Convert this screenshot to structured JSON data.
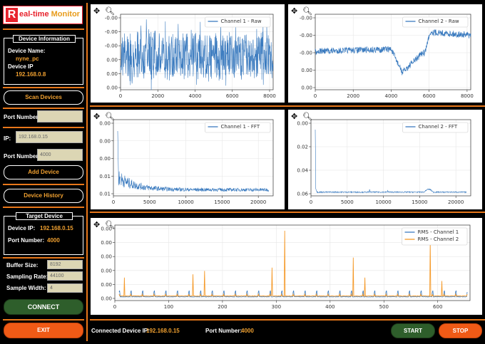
{
  "app": {
    "logo_letter": "R",
    "logo_text_a": "eal-time ",
    "logo_text_b": "Monitor"
  },
  "device_info": {
    "title": "Device Information",
    "name_label": "Device Name:",
    "name_value": "nyne_pc",
    "ip_label": "Device IP",
    "ip_value": "192.168.0.8"
  },
  "scan_button": "Scan Devices",
  "port_label": "Port Number",
  "port_value": "",
  "ip_label": "IP:",
  "ip_input": "192.168.0.15",
  "port2_label": "Port Number",
  "port2_input": "4000",
  "add_device_button": "Add Device",
  "device_history_button": "Device History",
  "target": {
    "title": "Target Device",
    "ip_label": "Device IP:",
    "ip_value": "192.168.0.15",
    "port_label": "Port Number:",
    "port_value": "4000"
  },
  "settings": {
    "buffer_label": "Buffer Size:",
    "buffer_value": "8192",
    "rate_label": "Sampling Rate:",
    "rate_value": "44100",
    "width_label": "Sample Width:",
    "width_value": "4"
  },
  "connect_button": "CONNECT",
  "exit_button": "EXIT",
  "status": {
    "connected_label": "Connected Device IP:",
    "connected_value": "192.168.0.15",
    "port_label": "Port Number:",
    "port_value": "4000"
  },
  "start_button": "START",
  "stop_button": "STOP",
  "colors": {
    "accent": "#e8771a",
    "blue": "#3b7bbf",
    "orange": "#f59a2a",
    "green": "#2e5e2b",
    "red": "#f05a16"
  },
  "icons": {
    "pan": "move-icon",
    "zoom": "magnifier-icon"
  },
  "plots": {
    "ch1_raw": {
      "legend": [
        "Channel 1 - Raw"
      ],
      "xticks": [
        "0",
        "2000",
        "4000",
        "6000",
        "8000"
      ],
      "yticks": [
        "0.00",
        "0.00",
        "0.00",
        "-0.00",
        "-0.00",
        "-0.00"
      ],
      "xlim": [
        0,
        8192
      ]
    },
    "ch2_raw": {
      "legend": [
        "Channel 2 - Raw"
      ],
      "xticks": [
        "0",
        "2000",
        "4000",
        "6000",
        "8000"
      ],
      "yticks": [
        "0.00",
        "0.00",
        "-0.00",
        "-0.00",
        "-0.00"
      ],
      "xlim": [
        0,
        8192
      ]
    },
    "ch1_fft": {
      "legend": [
        "Channel 1 - FFT"
      ],
      "xticks": [
        "0",
        "5000",
        "10000",
        "15000",
        "20000"
      ],
      "yticks": [
        "0.01",
        "0.01",
        "0.00",
        "0.00",
        "0.00"
      ],
      "xlim": [
        0,
        22050
      ]
    },
    "ch2_fft": {
      "legend": [
        "Channel 2 - FFT"
      ],
      "xticks": [
        "0",
        "5000",
        "10000",
        "15000",
        "20000"
      ],
      "yticks": [
        "0.06",
        "0.04",
        "0.02",
        "0.00"
      ],
      "xlim": [
        0,
        22050
      ]
    },
    "rms": {
      "legend": [
        "RMS - Channel 1",
        "RMS - Channel 2"
      ],
      "xticks": [
        "0",
        "100",
        "200",
        "300",
        "400",
        "500",
        "600"
      ],
      "yticks": [
        "0.00",
        "0.00",
        "0.00",
        "0.00",
        "0.00",
        "0.00"
      ],
      "xlim": [
        0,
        660
      ],
      "ch2_peaks": [
        [
          10,
          0.3
        ],
        [
          140,
          0.35
        ],
        [
          162,
          0.4
        ],
        [
          290,
          0.45
        ],
        [
          314,
          1.0
        ],
        [
          444,
          0.6
        ],
        [
          466,
          0.3
        ],
        [
          590,
          0.85
        ],
        [
          612,
          0.25
        ]
      ]
    }
  }
}
